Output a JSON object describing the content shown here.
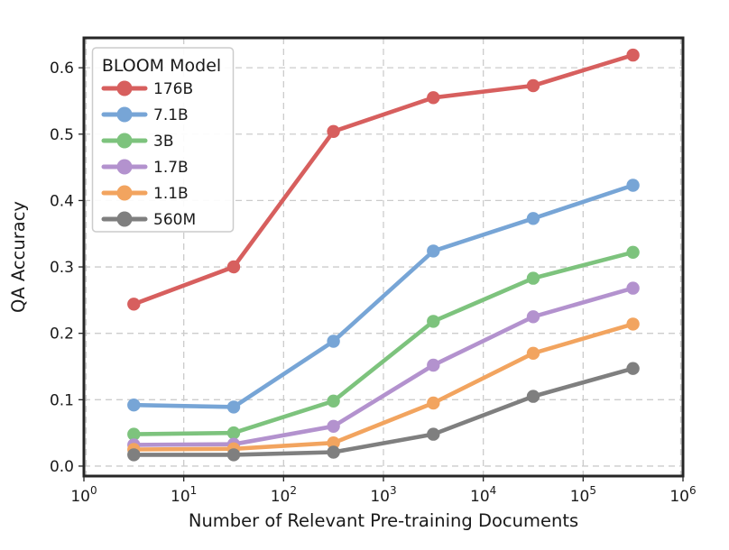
{
  "figure": {
    "xlabel": "Number of Relevant Pre-training Documents",
    "ylabel": "QA Accuracy",
    "legend_title": "BLOOM Model",
    "text_color": "#1a1a1a",
    "grid_color": "#cccccc",
    "spine_color": "#262626",
    "legend_border_color": "#cccccc",
    "background_color": "#ffffff"
  },
  "chart_data": {
    "type": "line",
    "x_scale": "log",
    "xlabel": "Number of Relevant Pre-training Documents",
    "ylabel": "QA Accuracy",
    "legend_title": "BLOOM Model",
    "legend_position": "upper left",
    "grid": true,
    "xlim": [
      1,
      1000000
    ],
    "ylim": [
      -0.015,
      0.645
    ],
    "x_tick_exponents": [
      0,
      1,
      2,
      3,
      4,
      5,
      6
    ],
    "y_ticks": [
      0.0,
      0.1,
      0.2,
      0.3,
      0.4,
      0.5,
      0.6
    ],
    "x": [
      3.16,
      31.6,
      316,
      3160,
      31600,
      316000
    ],
    "series": [
      {
        "name": "176B",
        "color": "#d75f5e",
        "values": [
          0.244,
          0.3,
          0.504,
          0.555,
          0.573,
          0.619
        ]
      },
      {
        "name": "7.1B",
        "color": "#77a5d6",
        "values": [
          0.092,
          0.089,
          0.188,
          0.324,
          0.373,
          0.423
        ]
      },
      {
        "name": "3B",
        "color": "#7dc37d",
        "values": [
          0.048,
          0.05,
          0.098,
          0.218,
          0.283,
          0.322
        ]
      },
      {
        "name": "1.7B",
        "color": "#b392ce",
        "values": [
          0.032,
          0.033,
          0.06,
          0.152,
          0.225,
          0.268
        ]
      },
      {
        "name": "1.1B",
        "color": "#f2a45f",
        "values": [
          0.025,
          0.026,
          0.035,
          0.095,
          0.17,
          0.214
        ]
      },
      {
        "name": "560M",
        "color": "#7f7f7f",
        "values": [
          0.017,
          0.017,
          0.021,
          0.048,
          0.105,
          0.147
        ]
      }
    ]
  }
}
